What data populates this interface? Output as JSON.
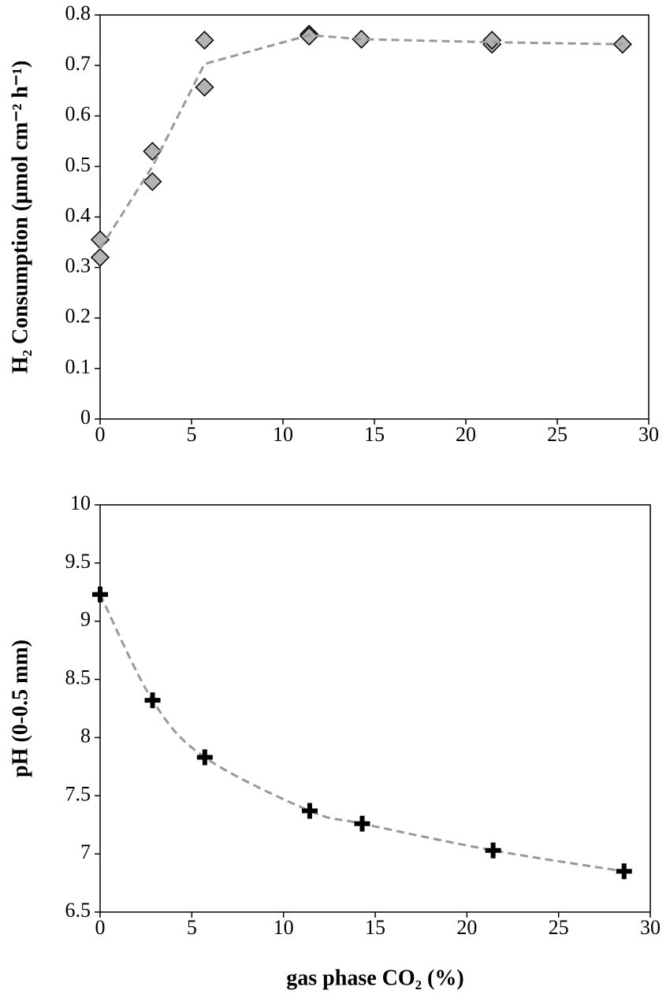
{
  "chart_data": [
    {
      "type": "scatter",
      "ylabel": "H₂ Consumption (µmol cm⁻² h⁻¹)",
      "xlim": [
        0,
        30
      ],
      "xticks": [
        0,
        5,
        10,
        15,
        20,
        25,
        30
      ],
      "ylim": [
        0,
        0.8
      ],
      "yticks": [
        0,
        0.1,
        0.2,
        0.3,
        0.4,
        0.5,
        0.6,
        0.7,
        0.8
      ],
      "series": [
        {
          "x": [
            0,
            0,
            2.86,
            2.86,
            5.71,
            5.71,
            11.43,
            11.43,
            14.29,
            21.43,
            21.43,
            28.57
          ],
          "values": [
            0.355,
            0.32,
            0.53,
            0.47,
            0.75,
            0.657,
            0.762,
            0.758,
            0.752,
            0.742,
            0.75,
            0.742
          ],
          "marker": "diamond",
          "color": "#b3b3b3"
        },
        {
          "x": [
            0,
            2.86,
            5.71,
            11.43,
            14.29,
            21.43,
            28.57
          ],
          "values": [
            0.337,
            0.5,
            0.703,
            0.76,
            0.752,
            0.746,
            0.742
          ],
          "line": "dashed",
          "color": "#999999"
        }
      ]
    },
    {
      "type": "scatter",
      "xlabel": "gas phase CO₂ (%)",
      "ylabel": "pH (0-0.5 mm)",
      "xlim": [
        0,
        30
      ],
      "xticks": [
        0,
        5,
        10,
        15,
        20,
        25,
        30
      ],
      "ylim": [
        6.5,
        10
      ],
      "yticks": [
        6.5,
        7,
        7.5,
        8,
        8.5,
        9,
        9.5,
        10
      ],
      "series": [
        {
          "x": [
            0,
            2.86,
            5.71,
            11.43,
            14.29,
            21.43,
            28.57
          ],
          "values": [
            9.23,
            8.32,
            7.83,
            7.37,
            7.26,
            7.03,
            6.85
          ],
          "marker": "plus",
          "color": "#000000",
          "line": "dashed",
          "line_color": "#999999"
        }
      ]
    }
  ]
}
